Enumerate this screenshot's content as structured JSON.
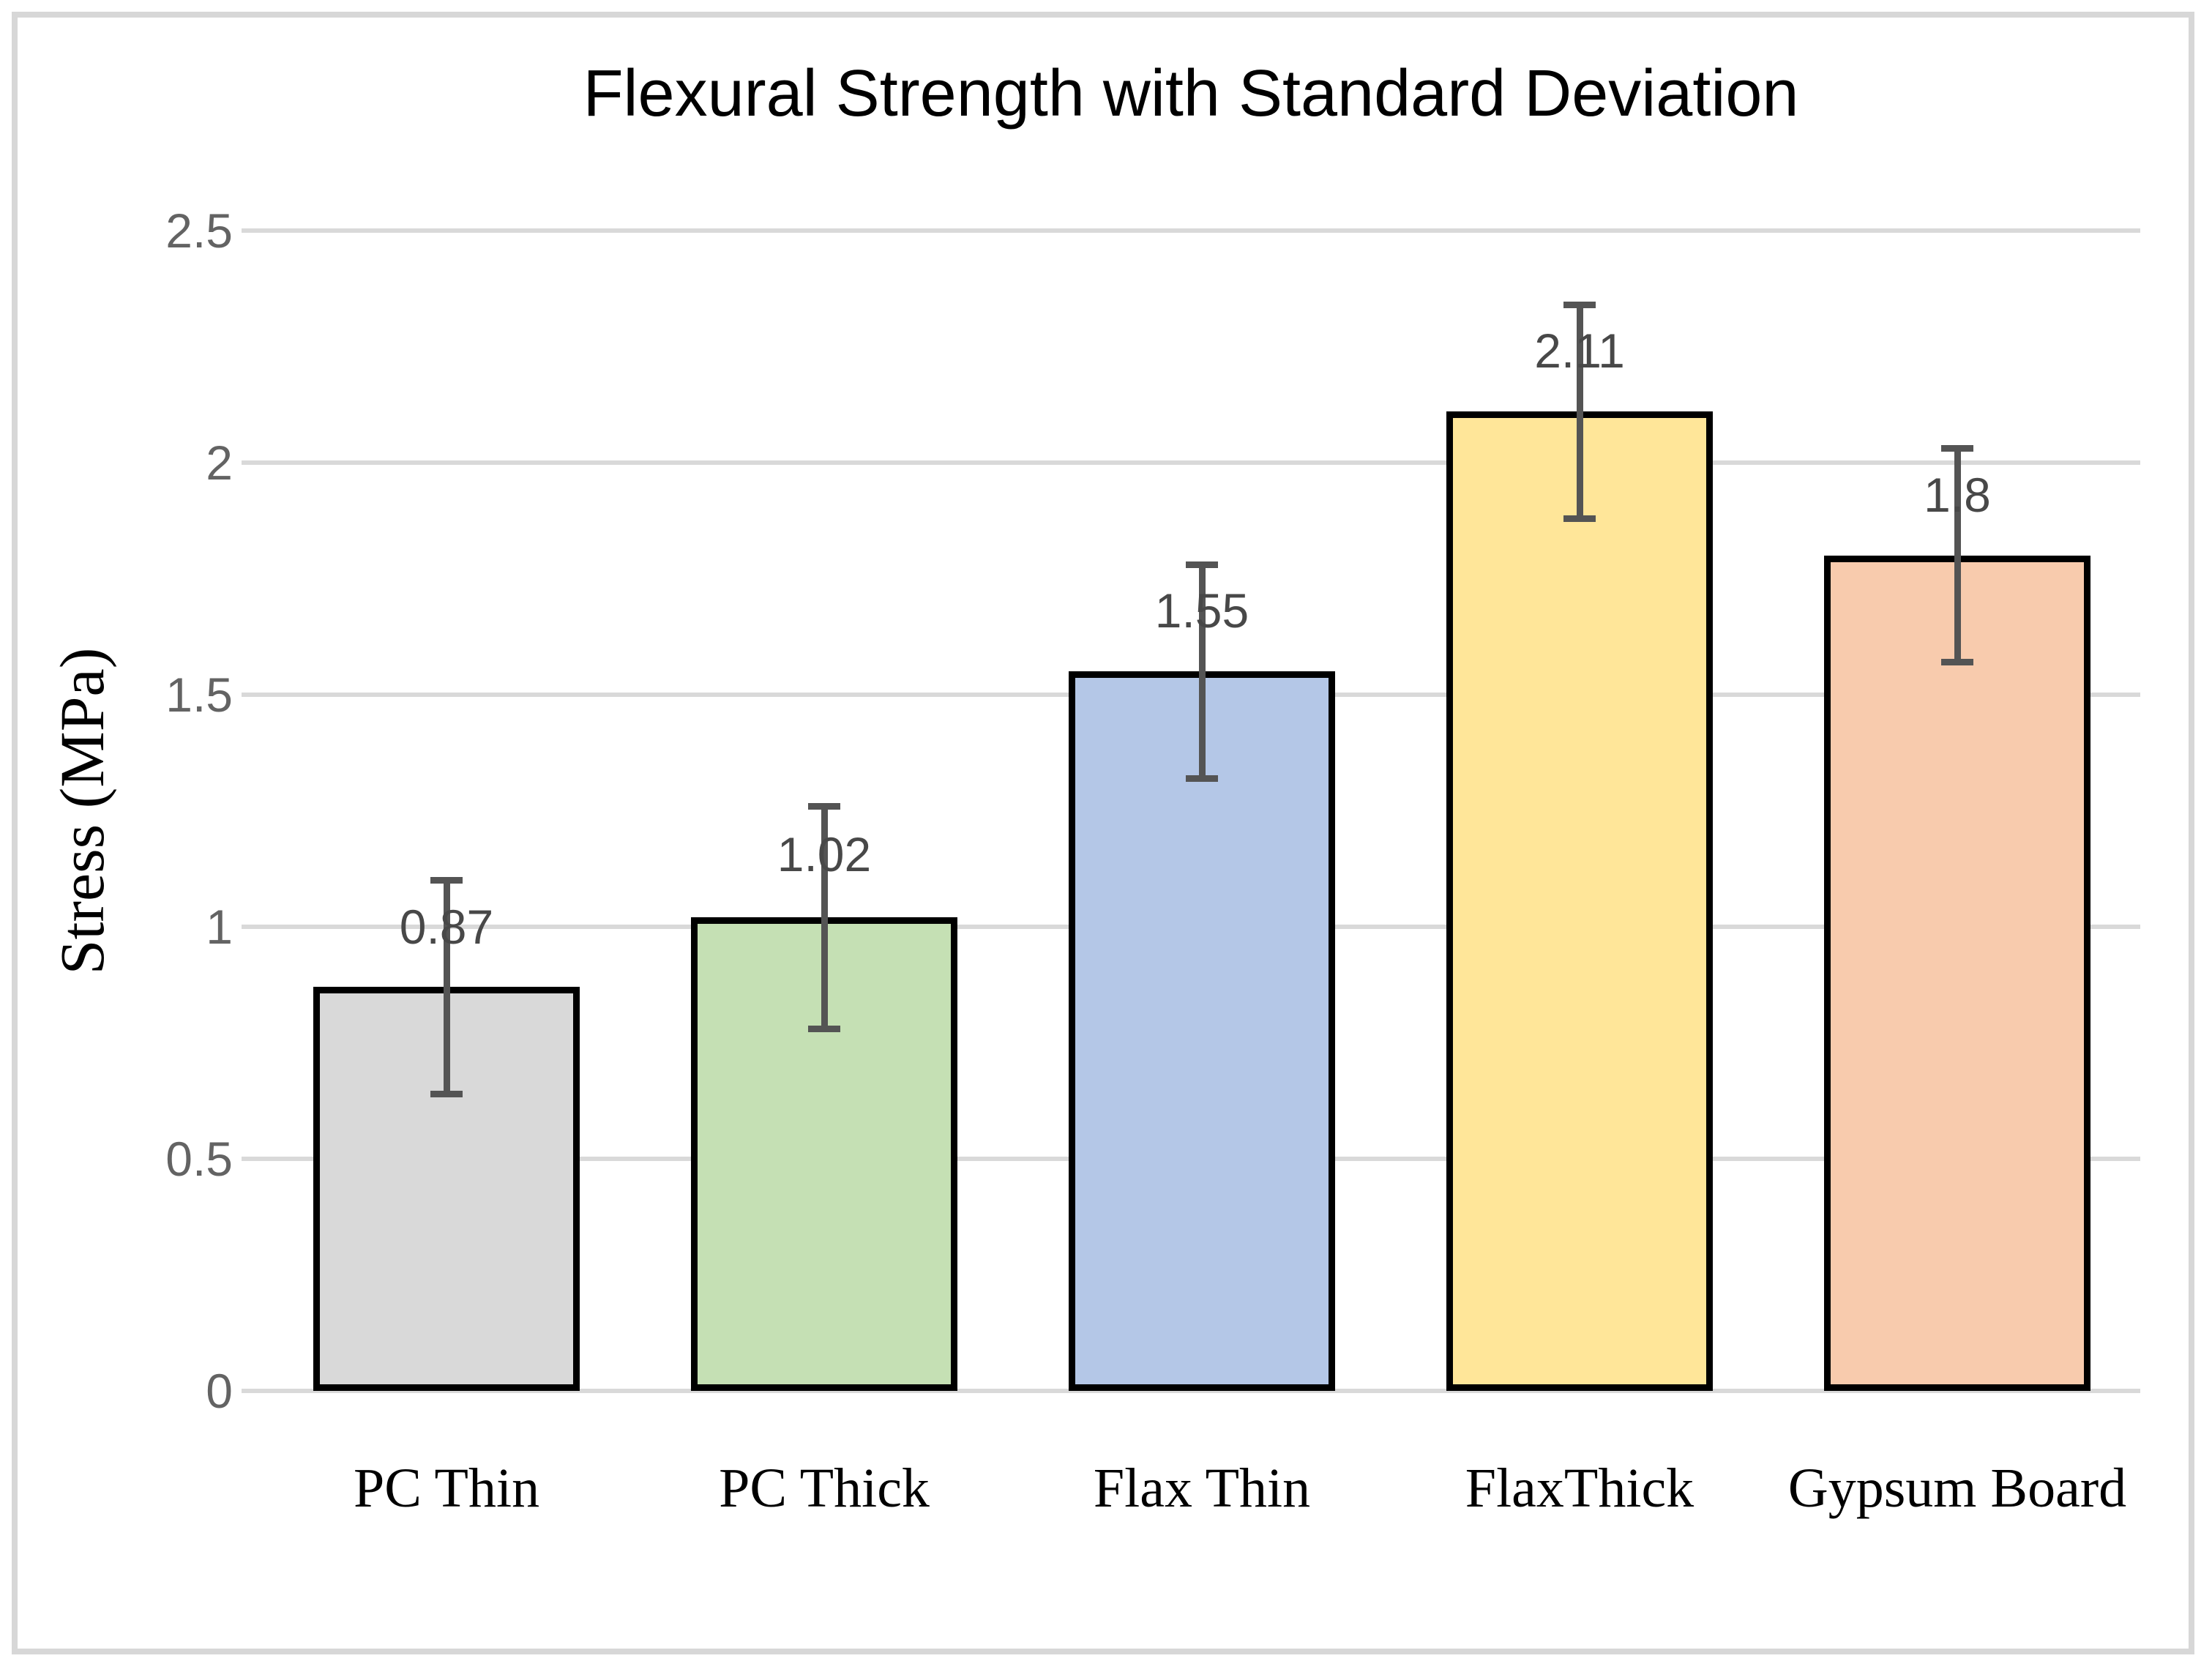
{
  "chart_data": {
    "type": "bar",
    "title": "Flexural Strength with Standard Deviation",
    "xlabel": "",
    "ylabel": "Stress (MPa)",
    "categories": [
      "PC Thin",
      "PC Thick",
      "Flax Thin",
      "FlaxThick",
      "Gypsum Board"
    ],
    "values": [
      0.87,
      1.02,
      1.55,
      2.11,
      1.8
    ],
    "value_labels": [
      "0.87",
      "1.02",
      "1.55",
      "2.11",
      "1.8"
    ],
    "errors": [
      0.23,
      0.24,
      0.23,
      0.23,
      0.23
    ],
    "bar_colors": [
      "#d9d9d9",
      "#c5e0b4",
      "#b4c7e7",
      "#ffe699",
      "#f8cbad"
    ],
    "bar_border_color": "#000000",
    "ylim": [
      0,
      2.5
    ],
    "ytick_step": 0.5,
    "ytick_values": [
      0,
      0.5,
      1,
      1.5,
      2,
      2.5
    ],
    "ytick_labels": [
      "0",
      "0.5",
      "1",
      "1.5",
      "2",
      "2.5"
    ],
    "grid": true,
    "gridline_color": "#d9d9d9",
    "tick_label_color": "#636363",
    "data_label_color": "#484848",
    "error_bar_color": "#545454",
    "frame_color": "#d7d7d7",
    "legend": "none"
  }
}
